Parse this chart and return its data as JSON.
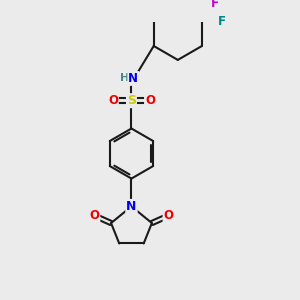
{
  "background_color": "#ebebeb",
  "bond_color": "#1a1a1a",
  "atom_colors": {
    "N": "#0000ee",
    "O": "#ee0000",
    "S": "#cccc00",
    "F1": "#cc00cc",
    "F2": "#008888",
    "H": "#4a8888",
    "C": "#1a1a1a"
  },
  "figsize": [
    3.0,
    3.0
  ],
  "dpi": 100
}
